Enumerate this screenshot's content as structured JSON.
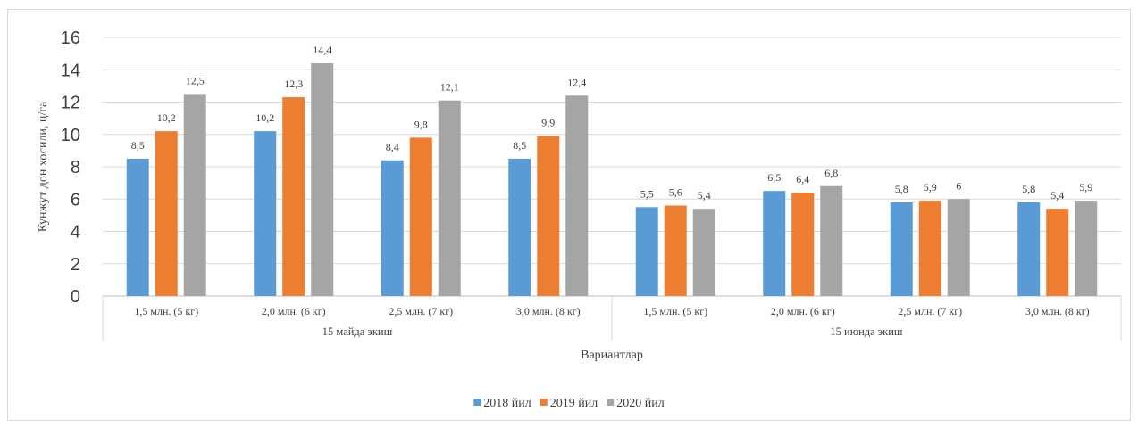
{
  "chart_data": {
    "type": "bar",
    "ylabel": "Кунжут дон хосили, ц/га",
    "xlabel": "Вариантлар",
    "ylim": [
      0,
      16
    ],
    "yticks": [
      "0",
      "2",
      "4",
      "6",
      "8",
      "10",
      "12",
      "14",
      "16"
    ],
    "grid": true,
    "legend_position": "bottom",
    "groups": [
      {
        "label": "15 майда экиш",
        "categories": [
          "1,5 млн. (5 кг)",
          "2,0 млн. (6 кг)",
          "2,5 млн. (7 кг)",
          "3,0 млн. (8 кг)"
        ]
      },
      {
        "label": "15 июнда экиш",
        "categories": [
          "1,5 млн. (5 кг)",
          "2,0 млн. (6 кг)",
          "2,5 млн. (7 кг)",
          "3,0 млн. (8 кг)"
        ]
      }
    ],
    "categories": [
      "1,5 млн. (5 кг)",
      "2,0 млн. (6 кг)",
      "2,5 млн. (7 кг)",
      "3,0 млн. (8 кг)",
      "1,5 млн. (5 кг)",
      "2,0 млн. (6 кг)",
      "2,5 млн. (7 кг)",
      "3,0 млн. (8 кг)"
    ],
    "series": [
      {
        "name": "2018 йил",
        "color": "#5b9bd5",
        "values": [
          8.5,
          10.2,
          8.4,
          8.5,
          5.5,
          6.5,
          5.8,
          5.8
        ],
        "labels": [
          "8,5",
          "10,2",
          "8,4",
          "8,5",
          "5,5",
          "6,5",
          "5,8",
          "5,8"
        ]
      },
      {
        "name": "2019 йил",
        "color": "#ed7d31",
        "values": [
          10.2,
          12.3,
          9.8,
          9.9,
          5.6,
          6.4,
          5.9,
          5.4
        ],
        "labels": [
          "10,2",
          "12,3",
          "9,8",
          "9,9",
          "5,6",
          "6,4",
          "5,9",
          "5,4"
        ]
      },
      {
        "name": "2020 йил",
        "color": "#a5a5a5",
        "values": [
          12.5,
          14.4,
          12.1,
          12.4,
          5.4,
          6.8,
          6,
          5.9
        ],
        "labels": [
          "12,5",
          "14,4",
          "12,1",
          "12,4",
          "5,4",
          "6,8",
          "6",
          "5,9"
        ]
      }
    ]
  }
}
